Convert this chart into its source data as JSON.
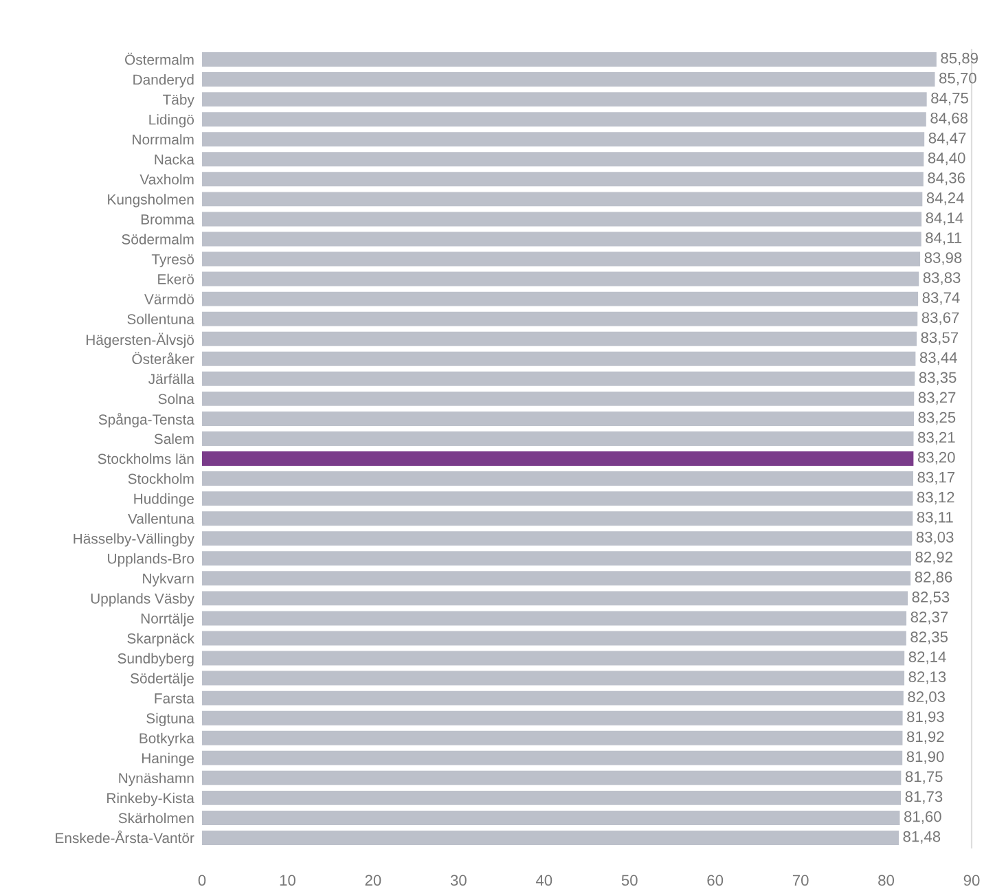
{
  "chart_data": {
    "type": "bar",
    "orientation": "horizontal",
    "categories": [
      "Östermalm",
      "Danderyd",
      "Täby",
      "Lidingö",
      "Norrmalm",
      "Nacka",
      "Vaxholm",
      "Kungsholmen",
      "Bromma",
      "Södermalm",
      "Tyresö",
      "Ekerö",
      "Värmdö",
      "Sollentuna",
      "Hägersten-Älvsjö",
      "Österåker",
      "Järfälla",
      "Solna",
      "Spånga-Tensta",
      "Salem",
      "Stockholms län",
      "Stockholm",
      "Huddinge",
      "Vallentuna",
      "Hässelby-Vällingby",
      "Upplands-Bro",
      "Nykvarn",
      "Upplands Väsby",
      "Norrtälje",
      "Skarpnäck",
      "Sundbyberg",
      "Södertälje",
      "Farsta",
      "Sigtuna",
      "Botkyrka",
      "Haninge",
      "Nynäshamn",
      "Rinkeby-Kista",
      "Skärholmen",
      "Enskede-Årsta-Vantör"
    ],
    "values": [
      85.89,
      85.7,
      84.75,
      84.68,
      84.47,
      84.4,
      84.36,
      84.24,
      84.14,
      84.11,
      83.98,
      83.83,
      83.74,
      83.67,
      83.57,
      83.44,
      83.35,
      83.27,
      83.25,
      83.21,
      83.2,
      83.17,
      83.12,
      83.11,
      83.03,
      82.92,
      82.86,
      82.53,
      82.37,
      82.35,
      82.14,
      82.13,
      82.03,
      81.93,
      81.92,
      81.9,
      81.75,
      81.73,
      81.6,
      81.48
    ],
    "value_labels": [
      "85,89",
      "85,70",
      "84,75",
      "84,68",
      "84,47",
      "84,40",
      "84,36",
      "84,24",
      "84,14",
      "84,11",
      "83,98",
      "83,83",
      "83,74",
      "83,67",
      "83,57",
      "83,44",
      "83,35",
      "83,27",
      "83,25",
      "83,21",
      "83,20",
      "83,17",
      "83,12",
      "83,11",
      "83,03",
      "82,92",
      "82,86",
      "82,53",
      "82,37",
      "82,35",
      "82,14",
      "82,13",
      "82,03",
      "81,93",
      "81,92",
      "81,90",
      "81,75",
      "81,73",
      "81,60",
      "81,48"
    ],
    "colors": [
      "#bcc0ca",
      "#bcc0ca",
      "#bcc0ca",
      "#bcc0ca",
      "#bcc0ca",
      "#bcc0ca",
      "#bcc0ca",
      "#bcc0ca",
      "#bcc0ca",
      "#bcc0ca",
      "#bcc0ca",
      "#bcc0ca",
      "#bcc0ca",
      "#bcc0ca",
      "#bcc0ca",
      "#bcc0ca",
      "#bcc0ca",
      "#bcc0ca",
      "#bcc0ca",
      "#bcc0ca",
      "#7a3b8a",
      "#bcc0ca",
      "#bcc0ca",
      "#bcc0ca",
      "#bcc0ca",
      "#bcc0ca",
      "#bcc0ca",
      "#bcc0ca",
      "#bcc0ca",
      "#bcc0ca",
      "#bcc0ca",
      "#bcc0ca",
      "#bcc0ca",
      "#bcc0ca",
      "#bcc0ca",
      "#bcc0ca",
      "#bcc0ca",
      "#bcc0ca",
      "#bcc0ca",
      "#bcc0ca"
    ],
    "xlim": [
      0,
      90
    ],
    "xticks": [
      0,
      10,
      20,
      30,
      40,
      50,
      60,
      70,
      80,
      90
    ],
    "grid": false
  }
}
